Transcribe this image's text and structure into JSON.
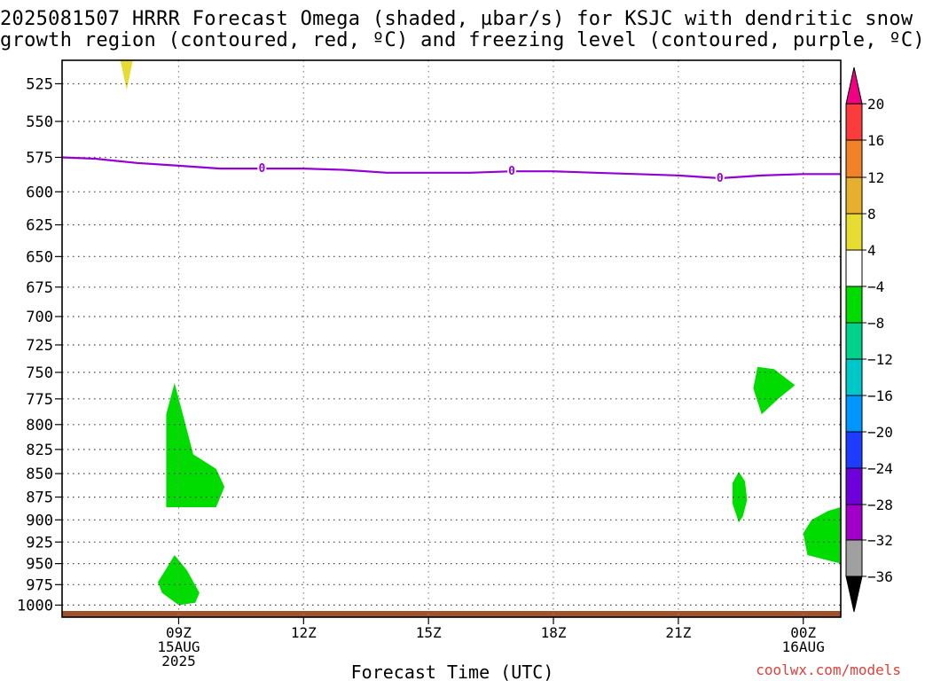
{
  "title": {
    "line1": "2025081507 HRRR Forecast Omega (shaded, µbar/s) for KSJC with dendritic snow",
    "line2": "growth region (contoured, red, ºC) and freezing level (contoured, purple, ºC)"
  },
  "credit": "coolwx.com/models",
  "chart_data": {
    "type": "heatmap",
    "title": "2025081507 HRRR Forecast Omega (shaded, µbar/s) for KSJC with dendritic snow growth region (contoured, red, ºC) and freezing level (contoured, purple, ºC)",
    "xlabel": "Forecast Time (UTC)",
    "ylabel": "",
    "x_axis": {
      "range_hours_utc": [
        6.2,
        24.9
      ],
      "ticks": [
        {
          "hour": 9,
          "labels": [
            "09Z",
            "15AUG",
            "2025"
          ]
        },
        {
          "hour": 12,
          "labels": [
            "12Z"
          ]
        },
        {
          "hour": 15,
          "labels": [
            "15Z"
          ]
        },
        {
          "hour": 18,
          "labels": [
            "18Z"
          ]
        },
        {
          "hour": 21,
          "labels": [
            "21Z"
          ]
        },
        {
          "hour": 24,
          "labels": [
            "00Z",
            "16AUG"
          ]
        }
      ]
    },
    "y_axis": {
      "unit": "hPa",
      "scale": "log-pressure",
      "inverted": true,
      "range": [
        1015,
        510
      ],
      "ticks": [
        525,
        550,
        575,
        600,
        625,
        650,
        675,
        700,
        725,
        750,
        775,
        800,
        825,
        850,
        875,
        900,
        925,
        950,
        975,
        1000
      ]
    },
    "grid": true,
    "colorbar": {
      "unit": "µbar/s",
      "position": "right",
      "bins": [
        {
          "from": -40,
          "to": -36,
          "color": "#000000"
        },
        {
          "from": -36,
          "to": -32,
          "color": "#a0a0a0"
        },
        {
          "from": -32,
          "to": -28,
          "color": "#a000c8"
        },
        {
          "from": -28,
          "to": -24,
          "color": "#6e00dc"
        },
        {
          "from": -24,
          "to": -20,
          "color": "#1e3cff"
        },
        {
          "from": -20,
          "to": -16,
          "color": "#0096ff"
        },
        {
          "from": -16,
          "to": -12,
          "color": "#00c8c8"
        },
        {
          "from": -12,
          "to": -8,
          "color": "#00d28c"
        },
        {
          "from": -8,
          "to": -4,
          "color": "#00dc00"
        },
        {
          "from": -4,
          "to": 4,
          "color": "#ffffff"
        },
        {
          "from": 4,
          "to": 8,
          "color": "#e6dc32"
        },
        {
          "from": 8,
          "to": 12,
          "color": "#e6af2d"
        },
        {
          "from": 12,
          "to": 16,
          "color": "#f08228"
        },
        {
          "from": 16,
          "to": 20,
          "color": "#fa3c3c"
        },
        {
          "from": 20,
          "to": 24,
          "color": "#f00082"
        }
      ],
      "tick_labels": [
        "20",
        "16",
        "12",
        "8",
        "4",
        "−4",
        "−8",
        "−12",
        "−16",
        "−20",
        "−24",
        "−28",
        "−32",
        "−36"
      ]
    },
    "omega_regions": [
      {
        "color": "#e6dc32",
        "points": [
          [
            7.6,
            510
          ],
          [
            7.9,
            510
          ],
          [
            7.75,
            529
          ]
        ]
      },
      {
        "color": "#00dc00",
        "points": [
          [
            8.9,
            760
          ],
          [
            9.1,
            790
          ],
          [
            9.35,
            830
          ],
          [
            9.9,
            845
          ],
          [
            10.1,
            864
          ],
          [
            9.9,
            886
          ],
          [
            8.7,
            886
          ],
          [
            8.7,
            840
          ],
          [
            8.7,
            790
          ]
        ]
      },
      {
        "color": "#00dc00",
        "points": [
          [
            8.9,
            940
          ],
          [
            9.2,
            958
          ],
          [
            9.5,
            985
          ],
          [
            9.4,
            997
          ],
          [
            9.0,
            1000
          ],
          [
            8.6,
            985
          ],
          [
            8.5,
            972
          ],
          [
            8.7,
            956
          ]
        ]
      },
      {
        "color": "#00dc00",
        "points": [
          [
            22.9,
            745
          ],
          [
            23.3,
            747
          ],
          [
            23.8,
            762
          ],
          [
            23.4,
            775
          ],
          [
            23.0,
            790
          ],
          [
            22.8,
            765
          ]
        ]
      },
      {
        "color": "#00dc00",
        "points": [
          [
            22.45,
            848
          ],
          [
            22.6,
            858
          ],
          [
            22.65,
            878
          ],
          [
            22.55,
            896
          ],
          [
            22.45,
            903
          ],
          [
            22.3,
            882
          ],
          [
            22.3,
            860
          ]
        ]
      },
      {
        "color": "#00dc00",
        "points": [
          [
            24.9,
            886
          ],
          [
            24.6,
            890
          ],
          [
            24.2,
            900
          ],
          [
            24.0,
            915
          ],
          [
            24.1,
            940
          ],
          [
            24.9,
            950
          ]
        ]
      }
    ],
    "freezing_level": {
      "contour_label": "0",
      "color": "#9400d3",
      "points": [
        [
          6.2,
          575
        ],
        [
          7.0,
          576
        ],
        [
          8.0,
          579
        ],
        [
          9.0,
          581
        ],
        [
          10.0,
          583
        ],
        [
          11.0,
          583
        ],
        [
          12.0,
          583
        ],
        [
          13.0,
          584
        ],
        [
          14.0,
          586
        ],
        [
          15.0,
          586
        ],
        [
          16.0,
          586
        ],
        [
          17.0,
          585
        ],
        [
          18.0,
          585
        ],
        [
          19.0,
          586
        ],
        [
          20.0,
          587
        ],
        [
          21.0,
          588
        ],
        [
          22.0,
          590
        ],
        [
          23.0,
          588
        ],
        [
          24.0,
          587
        ],
        [
          24.9,
          587
        ]
      ],
      "label_hours": [
        11.0,
        17.0,
        22.0
      ]
    },
    "surface_band_color": "#a0522d"
  }
}
